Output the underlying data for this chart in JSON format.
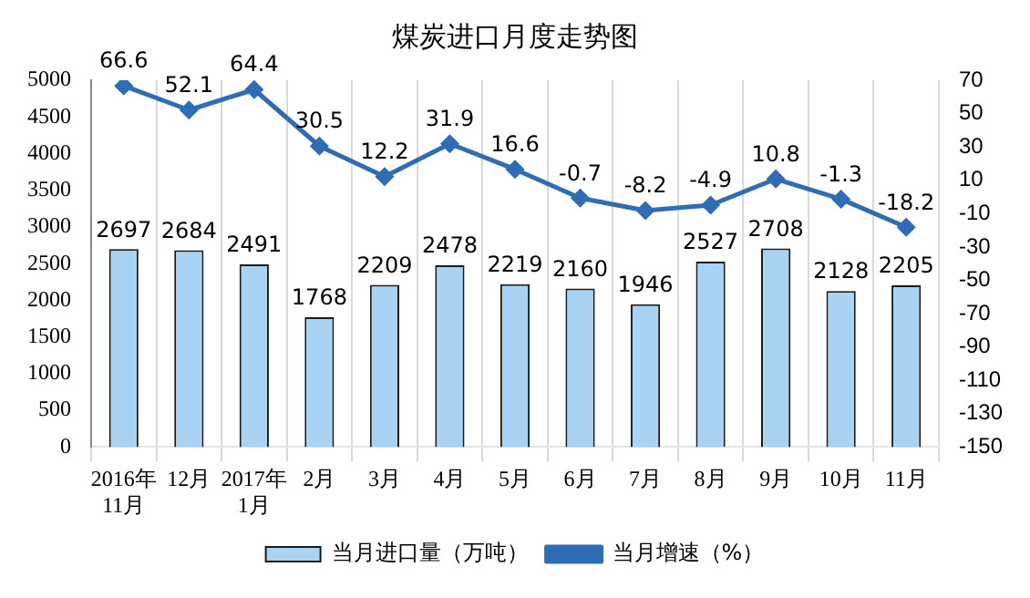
{
  "chart_data": {
    "type": "bar",
    "title": "煤炭进口月度走势图",
    "categories": [
      "2016年\n11月",
      "12月",
      "2017年\n1月",
      "2月",
      "3月",
      "4月",
      "5月",
      "6月",
      "7月",
      "8月",
      "9月",
      "10月",
      "11月"
    ],
    "series": [
      {
        "name": "当月进口量（万吨）",
        "color": "#a9d3f5",
        "values": [
          2697,
          2684,
          2491,
          1768,
          2209,
          2478,
          2219,
          2160,
          1946,
          2527,
          2708,
          2128,
          2205
        ]
      },
      {
        "name": "当月增速（%）",
        "type": "line",
        "axis": "y2",
        "color": "#2e6db5",
        "values": [
          66.6,
          52.1,
          64.4,
          30.5,
          12.2,
          31.9,
          16.6,
          -0.7,
          -8.2,
          -4.9,
          10.8,
          -1.3,
          -18.2
        ]
      }
    ],
    "ylim": [
      0,
      5000
    ],
    "yticks": [
      0,
      500,
      1000,
      1500,
      2000,
      2500,
      3000,
      3500,
      4000,
      4500,
      5000
    ],
    "y2lim": [
      -150,
      70
    ],
    "y2ticks": [
      -150,
      -130,
      -110,
      -90,
      -70,
      -50,
      -30,
      -10,
      10,
      30,
      50,
      70
    ],
    "grid": "x",
    "legend": "bottom",
    "data_labels": true,
    "marker": "diamond",
    "line_style": "solid"
  }
}
